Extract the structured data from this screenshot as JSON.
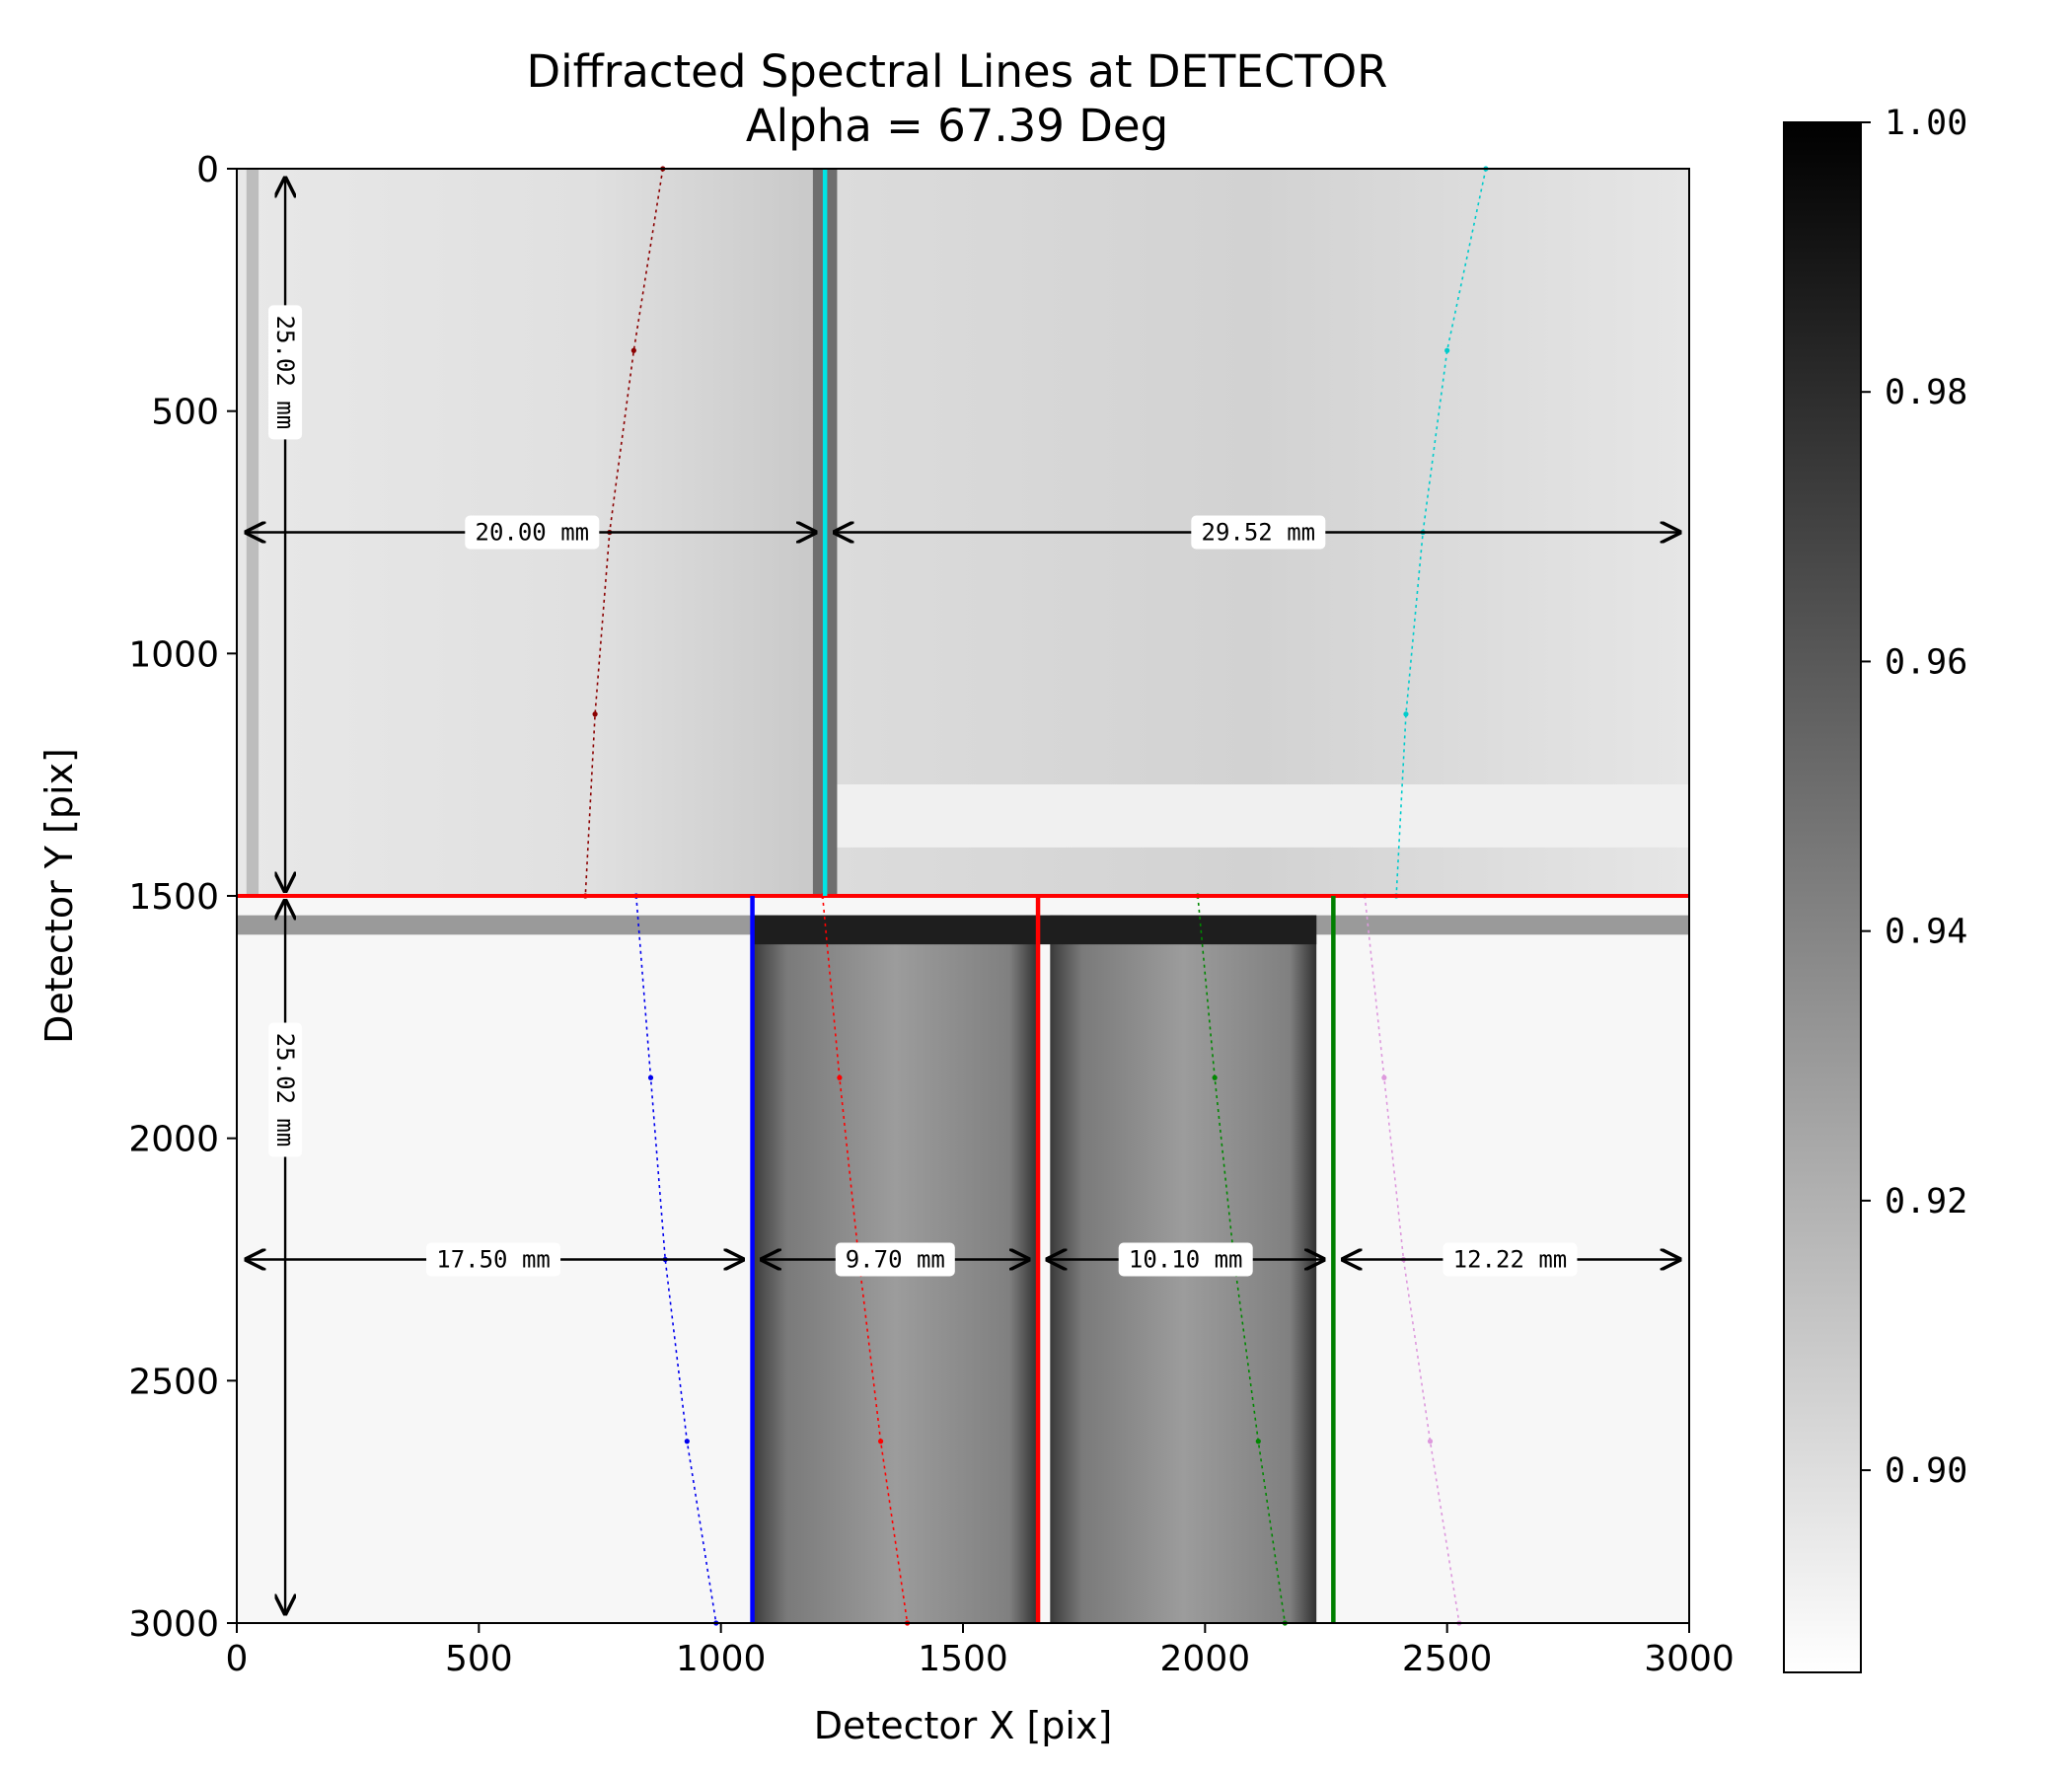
{
  "chart_data": {
    "type": "heatmap",
    "title": "Diffracted Spectral Lines at DETECTOR",
    "subtitle": "Alpha = 67.39 Deg",
    "xlabel": "Detector X [pix]",
    "ylabel": "Detector Y [pix]",
    "xlim": [
      0,
      3000
    ],
    "ylim": [
      3000,
      0
    ],
    "xticks": [
      "0",
      "500",
      "1000",
      "1500",
      "2000",
      "2500",
      "3000"
    ],
    "yticks": [
      "0",
      "500",
      "1000",
      "1500",
      "2000",
      "2500",
      "3000"
    ],
    "colorbar": {
      "range": [
        0.885,
        1.0
      ],
      "cmap": "gray_r",
      "ticks": [
        {
          "value": 1.0,
          "label": "1.00"
        },
        {
          "value": 0.98,
          "label": "0.98"
        },
        {
          "value": 0.96,
          "label": "0.96"
        },
        {
          "value": 0.94,
          "label": "0.94"
        },
        {
          "value": 0.92,
          "label": "0.92"
        },
        {
          "value": 0.9,
          "label": "0.90"
        }
      ]
    },
    "detector_split_y": 1500,
    "vertical_lines": [
      {
        "x": 1215,
        "y": [
          0,
          1500
        ],
        "color": "#00e5e5"
      },
      {
        "x": 1065,
        "y": [
          1500,
          3000
        ],
        "color": "#0000ff"
      },
      {
        "x": 1655,
        "y": [
          1500,
          3000
        ],
        "color": "#ff0000"
      },
      {
        "x": 2265,
        "y": [
          1500,
          3000
        ],
        "color": "#007f00"
      }
    ],
    "horizontal_lines": [
      {
        "y": 1500,
        "x": [
          0,
          3000
        ],
        "color": "#ff0000"
      }
    ],
    "spectral_lines": [
      {
        "color": "#8b0000",
        "x": [
          880,
          820,
          770,
          740,
          720
        ],
        "y": [
          0,
          375,
          750,
          1125,
          1500
        ]
      },
      {
        "color": "#00cccc",
        "x": [
          2580,
          2500,
          2450,
          2415,
          2395
        ],
        "y": [
          0,
          375,
          750,
          1125,
          1500
        ]
      },
      {
        "color": "#0000ee",
        "x": [
          825,
          855,
          885,
          930,
          990
        ],
        "y": [
          1500,
          1875,
          2250,
          2625,
          3000
        ]
      },
      {
        "color": "#ff0000",
        "x": [
          1210,
          1245,
          1285,
          1330,
          1385
        ],
        "y": [
          1500,
          1875,
          2250,
          2625,
          3000
        ]
      },
      {
        "color": "#008800",
        "x": [
          1985,
          2020,
          2060,
          2110,
          2165
        ],
        "y": [
          1500,
          1875,
          2250,
          2625,
          3000
        ]
      },
      {
        "color": "#dd99dd",
        "x": [
          2330,
          2370,
          2410,
          2465,
          2525
        ],
        "y": [
          1500,
          1875,
          2250,
          2625,
          3000
        ]
      }
    ],
    "dimension_annotations": [
      {
        "label": "25.02 mm",
        "orientation": "vertical",
        "at": 100,
        "from": 20,
        "to": 1490,
        "label_pos": 420
      },
      {
        "label": "25.02 mm",
        "orientation": "vertical",
        "at": 100,
        "from": 1510,
        "to": 2980,
        "label_pos": 1900
      },
      {
        "label": "20.00 mm",
        "orientation": "horizontal",
        "at": 750,
        "from": 20,
        "to": 1195,
        "label_pos": 610
      },
      {
        "label": "29.52 mm",
        "orientation": "horizontal",
        "at": 750,
        "from": 1235,
        "to": 2980,
        "label_pos": 2110
      },
      {
        "label": "17.50 mm",
        "orientation": "horizontal",
        "at": 2250,
        "from": 20,
        "to": 1045,
        "label_pos": 530
      },
      {
        "label": "9.70 mm",
        "orientation": "horizontal",
        "at": 2250,
        "from": 1085,
        "to": 1635,
        "label_pos": 1360
      },
      {
        "label": "10.10 mm",
        "orientation": "horizontal",
        "at": 2250,
        "from": 1675,
        "to": 2245,
        "label_pos": 1960
      },
      {
        "label": "12.22 mm",
        "orientation": "horizontal",
        "at": 2250,
        "from": 2285,
        "to": 2980,
        "label_pos": 2630
      }
    ]
  }
}
